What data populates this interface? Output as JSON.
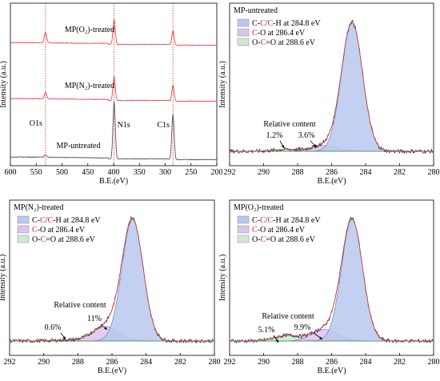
{
  "chart_data": [
    {
      "type": "line",
      "panel": "survey",
      "xlabel": "B.E.(eV)",
      "ylabel": "Intensity (a.u.)",
      "xlim": [
        600,
        200
      ],
      "xticks": [
        600,
        550,
        500,
        450,
        400,
        350,
        300,
        250,
        200
      ],
      "peak_lines": [
        {
          "x": 532,
          "label": "O1s"
        },
        {
          "x": 399,
          "label": "N1s"
        },
        {
          "x": 285,
          "label": "C1s"
        }
      ],
      "series": [
        {
          "name": "MP(O₂)-treated",
          "color": "#e8474b",
          "offset": 3,
          "peaks": [
            {
              "x": 532,
              "h": 0.9
            },
            {
              "x": 399,
              "h": 2.1
            },
            {
              "x": 285,
              "h": 1.2
            }
          ]
        },
        {
          "name": "MP(N₂)-treated",
          "color": "#e8474b",
          "offset": 1.9,
          "peaks": [
            {
              "x": 532,
              "h": 0.55
            },
            {
              "x": 399,
              "h": 2.0
            },
            {
              "x": 285,
              "h": 1.3
            }
          ]
        },
        {
          "name": "MP-untreated",
          "color": "#555555",
          "offset": 0,
          "peaks": [
            {
              "x": 532,
              "h": 0.2
            },
            {
              "x": 399,
              "h": 4.8
            },
            {
              "x": 285,
              "h": 3.8
            }
          ]
        }
      ]
    },
    {
      "type": "line",
      "panel": "C1s MP-untreated",
      "title": "MP-untreated",
      "xlabel": "B.E.(eV)",
      "ylabel": "Intensity (a.u.)",
      "xlim": [
        292,
        280
      ],
      "xticks": [
        292,
        290,
        288,
        286,
        284,
        282,
        280
      ],
      "legend": [
        {
          "parts": [
            {
              "t": "C-"
            },
            {
              "t": "C",
              "red": true
            },
            {
              "t": "/"
            },
            {
              "t": "C",
              "red": true
            },
            {
              "t": "-H at 284.8 eV"
            }
          ],
          "fill": "#b8c8ee"
        },
        {
          "parts": [
            {
              "t": "C",
              "red": true
            },
            {
              "t": "-O at 286.4 eV"
            }
          ],
          "fill": "#dcc4ee"
        },
        {
          "parts": [
            {
              "t": "O-"
            },
            {
              "t": "C",
              "red": true
            },
            {
              "t": "=O at 288.6 eV"
            }
          ],
          "fill": "#cfe8d4"
        }
      ],
      "annotations": {
        "title": "Relative content",
        "values": [
          "1.2%",
          "3.6%"
        ]
      },
      "peaks": [
        {
          "name": "C-C/C-H",
          "center": 284.8,
          "height": 100
        },
        {
          "name": "C-O",
          "center": 286.4,
          "height": 4.5
        },
        {
          "name": "O-C=O",
          "center": 288.6,
          "height": 1.5
        }
      ]
    },
    {
      "type": "line",
      "panel": "C1s MP(N2)-treated",
      "title": "MP(N₂)-treated",
      "xlabel": "B.E.(eV)",
      "ylabel": "Intensity (a.u.)",
      "xlim": [
        292,
        280
      ],
      "xticks": [
        292,
        290,
        288,
        286,
        284,
        282,
        280
      ],
      "legend": [
        {
          "parts": [
            {
              "t": "C-"
            },
            {
              "t": "C",
              "red": true
            },
            {
              "t": "/"
            },
            {
              "t": "C",
              "red": true
            },
            {
              "t": "-H at 284.8 eV"
            }
          ],
          "fill": "#b8c8ee"
        },
        {
          "parts": [
            {
              "t": "C",
              "red": true
            },
            {
              "t": "-O at 286.4 eV"
            }
          ],
          "fill": "#dcc4ee"
        },
        {
          "parts": [
            {
              "t": "O-"
            },
            {
              "t": "C",
              "red": true
            },
            {
              "t": "=O at 288.6 eV"
            }
          ],
          "fill": "#cfe8d4"
        }
      ],
      "annotations": {
        "title": "Relative content",
        "values": [
          "0.6%",
          "11%"
        ]
      },
      "peaks": [
        {
          "name": "C-C/C-H",
          "center": 284.8,
          "height": 100
        },
        {
          "name": "C-O",
          "center": 286.4,
          "height": 12
        },
        {
          "name": "O-C=O",
          "center": 288.6,
          "height": 0.8
        }
      ]
    },
    {
      "type": "line",
      "panel": "C1s MP(O2)-treated",
      "title": "MP(O₂)-treated",
      "xlabel": "B.E.(eV)",
      "ylabel": "Intensity (a.u.)",
      "xlim": [
        292,
        280
      ],
      "xticks": [
        292,
        290,
        288,
        286,
        284,
        282,
        280
      ],
      "legend": [
        {
          "parts": [
            {
              "t": "C-"
            },
            {
              "t": "C",
              "red": true
            },
            {
              "t": "/"
            },
            {
              "t": "C",
              "red": true
            },
            {
              "t": "-H at 284.8 eV"
            }
          ],
          "fill": "#b8c8ee"
        },
        {
          "parts": [
            {
              "t": "C",
              "red": true
            },
            {
              "t": "-O at 286.4 eV"
            }
          ],
          "fill": "#dcc4ee"
        },
        {
          "parts": [
            {
              "t": "O-"
            },
            {
              "t": "C",
              "red": true
            },
            {
              "t": "=O at 288.6 eV"
            }
          ],
          "fill": "#cfe8d4"
        }
      ],
      "annotations": {
        "title": "Relative content",
        "values": [
          "5.1%",
          "9.9%"
        ]
      },
      "peaks": [
        {
          "name": "C-C/C-H",
          "center": 284.8,
          "height": 100
        },
        {
          "name": "C-O",
          "center": 286.4,
          "height": 9.5
        },
        {
          "name": "O-C=O",
          "center": 288.6,
          "height": 4.5
        }
      ]
    }
  ]
}
